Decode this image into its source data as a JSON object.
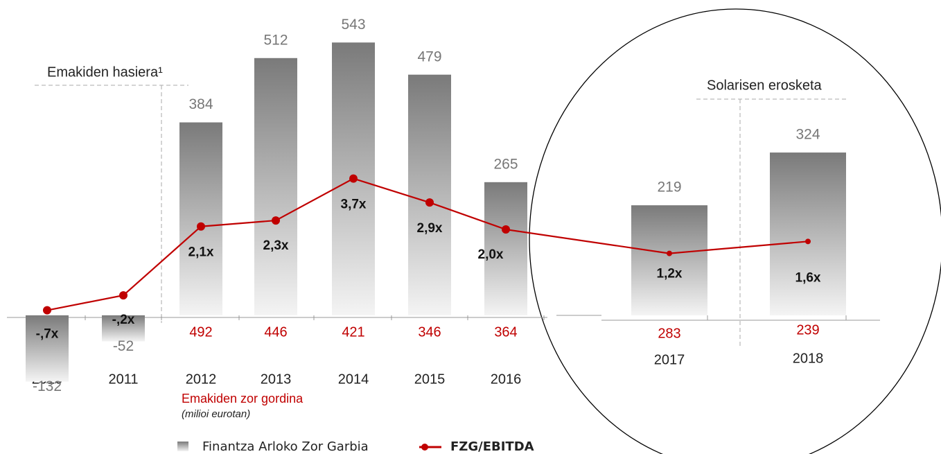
{
  "chart_data": {
    "type": "bar-line",
    "categories": [
      "2010",
      "2011",
      "2012",
      "2013",
      "2014",
      "2015",
      "2016",
      "2017",
      "2018"
    ],
    "series": [
      {
        "name": "Finantza Arloko Zor Garbia",
        "type": "bar",
        "color": "#808080",
        "values": [
          -132,
          -52,
          384,
          512,
          543,
          479,
          265,
          219,
          324
        ]
      },
      {
        "name": "FZG/EBITDA",
        "type": "line",
        "axis": "y2",
        "color": "#c00000",
        "values": [
          -0.7,
          -0.2,
          2.1,
          2.3,
          3.7,
          2.9,
          2.0,
          1.2,
          1.6
        ],
        "value_labels": [
          "-,7x",
          "-,2x",
          "2,1x",
          "2,3x",
          "3,7x",
          "2,9x",
          "2,0x",
          "1,2x",
          "1,6x"
        ]
      }
    ],
    "ylim": [
      -145,
      600
    ],
    "y2lim": [
      -3.3,
      9.2
    ],
    "concession_debt": {
      "label": "Emakiden zor gordina",
      "unit": "(milioi eurotan)",
      "color": "#c00000",
      "values": [
        null,
        null,
        492,
        446,
        421,
        346,
        364,
        283,
        239
      ]
    },
    "annotations": [
      "Emakiden hasiera¹",
      "Solarisen erosketa"
    ]
  }
}
